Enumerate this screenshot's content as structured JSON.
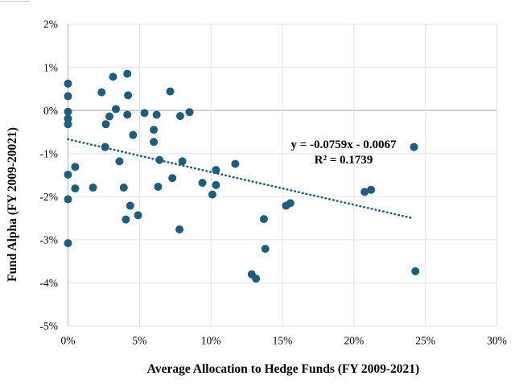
{
  "chart_data": {
    "type": "scatter",
    "title": "",
    "xlabel": "Average Allocation to Hedge Funds (FY 2009-2021)",
    "ylabel": "Fund Alpha (FY 2009-20021)",
    "xlim": [
      0,
      30
    ],
    "ylim": [
      -5,
      2
    ],
    "x_unit": "percent",
    "y_unit": "percent",
    "grid": true,
    "legend": "none",
    "x_tick_values": [
      0,
      5,
      10,
      15,
      20,
      25,
      30
    ],
    "x_tick_labels": [
      "0%",
      "5%",
      "10%",
      "15%",
      "20%",
      "25%",
      "30%"
    ],
    "y_tick_values": [
      2,
      1,
      0,
      -1,
      -2,
      -3,
      -4,
      -5
    ],
    "y_tick_labels": [
      "2%",
      "1%",
      "0%",
      "-1%",
      "-2%",
      "-3%",
      "-4%",
      "-5%"
    ],
    "marker_color": "#1E5D7F",
    "marker_radius": 5,
    "points": [
      [
        0,
        0.62
      ],
      [
        0,
        0.33
      ],
      [
        0,
        -0.03
      ],
      [
        0,
        -0.19
      ],
      [
        0,
        -0.32
      ],
      [
        0,
        -1.49
      ],
      [
        0,
        -2.06
      ],
      [
        0,
        -3.08
      ],
      [
        0.5,
        -1.31
      ],
      [
        0.5,
        -1.81
      ],
      [
        1.75,
        -1.79
      ],
      [
        2.35,
        0.42
      ],
      [
        2.6,
        -0.85
      ],
      [
        2.65,
        -0.32
      ],
      [
        2.9,
        -0.14
      ],
      [
        3.15,
        0.78
      ],
      [
        3.35,
        0.03
      ],
      [
        3.6,
        -1.18
      ],
      [
        3.9,
        -1.79
      ],
      [
        4.05,
        -2.53
      ],
      [
        4.15,
        0.85
      ],
      [
        4.15,
        -0.1
      ],
      [
        4.2,
        0.35
      ],
      [
        4.35,
        -2.21
      ],
      [
        4.55,
        -0.57
      ],
      [
        4.9,
        -2.43
      ],
      [
        5.35,
        -0.06
      ],
      [
        6.0,
        -0.45
      ],
      [
        6.0,
        -0.73
      ],
      [
        6.2,
        -0.1
      ],
      [
        6.3,
        -1.77
      ],
      [
        6.4,
        -1.15
      ],
      [
        7.15,
        0.44
      ],
      [
        7.3,
        -1.57
      ],
      [
        7.8,
        -2.76
      ],
      [
        7.85,
        -0.13
      ],
      [
        8.0,
        -1.18
      ],
      [
        8.5,
        -0.04
      ],
      [
        9.4,
        -1.68
      ],
      [
        10.1,
        -1.95
      ],
      [
        10.35,
        -1.38
      ],
      [
        10.35,
        -1.73
      ],
      [
        11.7,
        -1.24
      ],
      [
        12.85,
        -3.8
      ],
      [
        13.15,
        -3.9
      ],
      [
        13.7,
        -2.52
      ],
      [
        13.8,
        -3.21
      ],
      [
        15.25,
        -2.21
      ],
      [
        15.55,
        -2.15
      ],
      [
        20.75,
        -1.89
      ],
      [
        21.2,
        -1.84
      ],
      [
        24.2,
        -0.85
      ],
      [
        24.3,
        -3.73
      ]
    ],
    "trendline": {
      "type": "linear",
      "style": "dotted",
      "color": "#1E5D7F",
      "slope": -0.0759,
      "intercept": -0.0067,
      "x_range_pct": [
        0,
        24.1
      ],
      "equation": "y = -0.0759x - 0.0067",
      "r_squared": "R² = 0.1739"
    },
    "colors": {
      "gridline": "#E4E4E4",
      "zero_line": "#A8A8A8",
      "axis_line": "#BFBFBF",
      "tick_text": "#000000"
    }
  }
}
